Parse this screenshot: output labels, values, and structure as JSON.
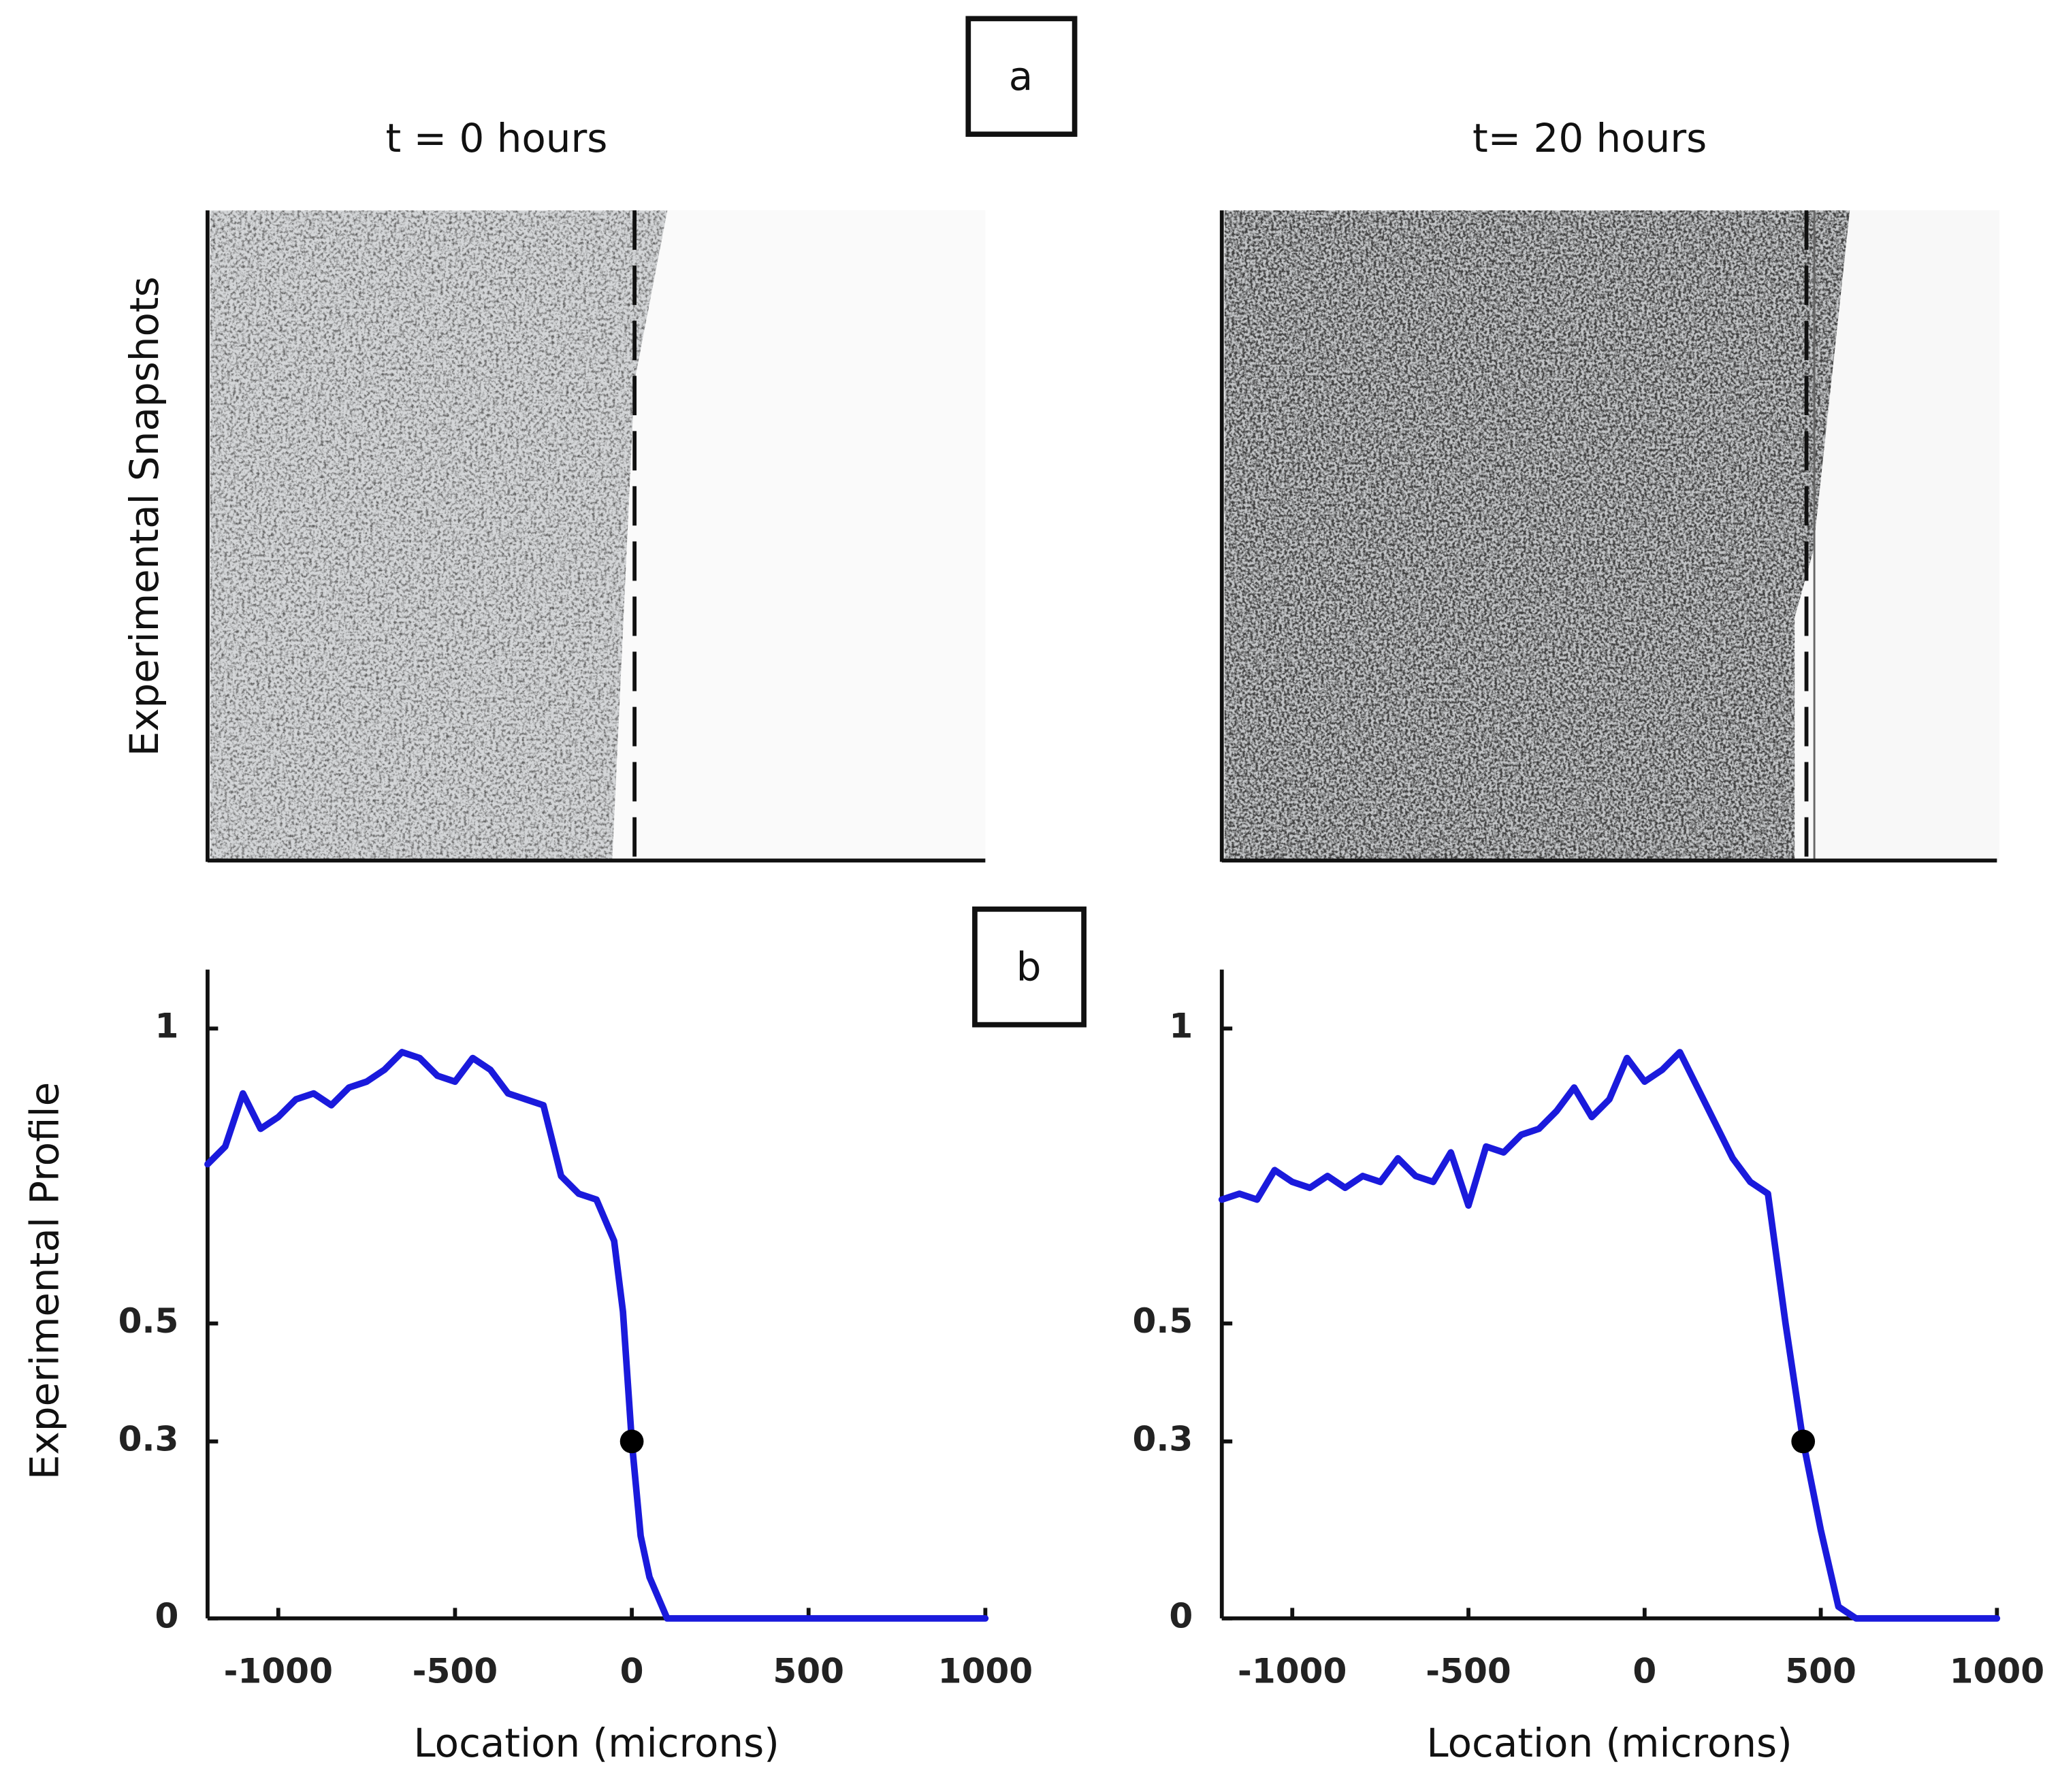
{
  "figure": {
    "label_a": "a",
    "label_b": "b",
    "snapshot_ylabel": "Experimental Snapshots",
    "snapshots": [
      {
        "title": "t = 0 hours"
      },
      {
        "title": "t= 20 hours"
      }
    ]
  },
  "chart_data": [
    {
      "type": "line",
      "ylabel": "Experimental Profile",
      "xlabel": "Location (microns)",
      "x": [
        -1200,
        -1150,
        -1100,
        -1050,
        -1000,
        -950,
        -900,
        -850,
        -800,
        -750,
        -700,
        -650,
        -600,
        -550,
        -500,
        -450,
        -400,
        -350,
        -300,
        -250,
        -200,
        -150,
        -100,
        -50,
        -25,
        0,
        25,
        50,
        100,
        150,
        200,
        300,
        400,
        500,
        600,
        700,
        800,
        900,
        1000
      ],
      "series": [
        {
          "color": "#1a1adc",
          "values": [
            0.77,
            0.8,
            0.89,
            0.83,
            0.85,
            0.88,
            0.89,
            0.87,
            0.9,
            0.91,
            0.93,
            0.96,
            0.95,
            0.92,
            0.91,
            0.95,
            0.93,
            0.89,
            0.88,
            0.87,
            0.75,
            0.72,
            0.71,
            0.64,
            0.52,
            0.3,
            0.14,
            0.07,
            0.0,
            0.0,
            0.0,
            0.0,
            0.0,
            0.0,
            0.0,
            0.0,
            0.0,
            0.0,
            0.0
          ]
        }
      ],
      "markers": [
        {
          "x": 0,
          "y": 0.3,
          "color": "#000000"
        }
      ],
      "xlim": [
        -1200,
        1000
      ],
      "xticks": [
        -1000,
        -500,
        0,
        500,
        1000
      ],
      "ylim": [
        0,
        1.1
      ],
      "yticks": [
        0,
        0.3,
        0.5,
        1
      ]
    },
    {
      "type": "line",
      "xlabel": "Location (microns)",
      "x": [
        -1200,
        -1150,
        -1100,
        -1050,
        -1000,
        -950,
        -900,
        -850,
        -800,
        -750,
        -700,
        -650,
        -600,
        -550,
        -500,
        -450,
        -400,
        -350,
        -300,
        -250,
        -200,
        -150,
        -100,
        -50,
        0,
        50,
        100,
        150,
        200,
        250,
        300,
        350,
        400,
        450,
        500,
        550,
        600,
        700,
        800,
        900,
        1000
      ],
      "series": [
        {
          "color": "#1a1adc",
          "values": [
            0.71,
            0.72,
            0.71,
            0.76,
            0.74,
            0.73,
            0.75,
            0.73,
            0.75,
            0.74,
            0.78,
            0.75,
            0.74,
            0.79,
            0.7,
            0.8,
            0.79,
            0.82,
            0.83,
            0.86,
            0.9,
            0.85,
            0.88,
            0.95,
            0.91,
            0.93,
            0.96,
            0.9,
            0.84,
            0.78,
            0.74,
            0.72,
            0.5,
            0.3,
            0.15,
            0.02,
            0.0,
            0.0,
            0.0,
            0.0,
            0.0
          ]
        }
      ],
      "markers": [
        {
          "x": 450,
          "y": 0.3,
          "color": "#000000"
        }
      ],
      "xlim": [
        -1200,
        1000
      ],
      "xticks": [
        -1000,
        -500,
        0,
        500,
        1000
      ],
      "ylim": [
        0,
        1.1
      ],
      "yticks": [
        0,
        0.3,
        0.5,
        1
      ]
    }
  ]
}
